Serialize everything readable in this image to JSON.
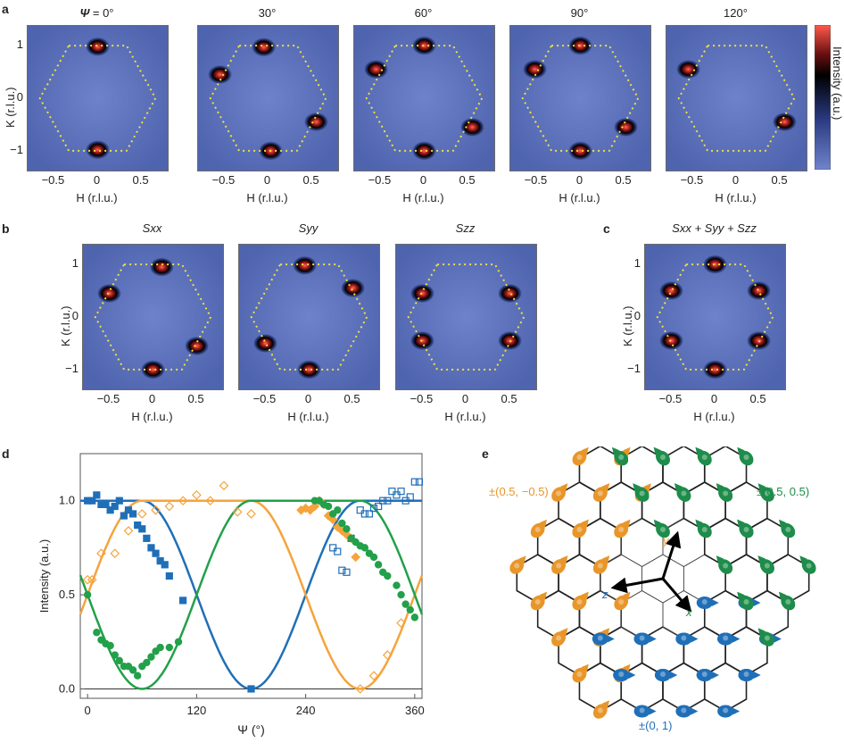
{
  "panels": {
    "a": "a",
    "b": "b",
    "c": "c",
    "d": "d",
    "e": "e"
  },
  "row_a": {
    "titles": [
      "Ψ = 0°",
      "30°",
      "60°",
      "90°",
      "120°"
    ],
    "psi_symbol": "Ψ",
    "psi_suffix": " = 0°"
  },
  "row_b": {
    "titles": [
      "Sxx",
      "Syy",
      "Szz"
    ],
    "title_c": "Sxx + Syy + Szz"
  },
  "axes": {
    "h_label": "H (r.l.u.)",
    "k_label": "K (r.l.u.)",
    "h_ticks": [
      "−0.5",
      "0",
      "0.5"
    ],
    "k_ticks": [
      "1",
      "0",
      "−1"
    ]
  },
  "colorbar": {
    "label": "Intensity (a.u.)",
    "colors": [
      "#ff5a4a",
      "#000000",
      "#4a5fb0",
      "#6f84cc"
    ]
  },
  "chart_data": {
    "type": "scatter",
    "xlabel": "Ψ (°)",
    "ylabel": "Intensity (a.u.)",
    "xlim": [
      -8,
      368
    ],
    "ylim": [
      -0.05,
      1.25
    ],
    "xticks": [
      0,
      120,
      240,
      360
    ],
    "yticks": [
      0.0,
      0.5,
      1.0
    ],
    "series": [
      {
        "color": "#1f6fb8",
        "filled_marker": "square",
        "filled": [
          [
            0,
            1.0
          ],
          [
            5,
            1.0
          ],
          [
            10,
            1.03
          ],
          [
            15,
            0.98
          ],
          [
            20,
            0.98
          ],
          [
            25,
            0.95
          ],
          [
            30,
            0.97
          ],
          [
            35,
            1.0
          ],
          [
            40,
            0.92
          ],
          [
            45,
            0.95
          ],
          [
            50,
            0.93
          ],
          [
            55,
            0.87
          ],
          [
            60,
            0.85
          ],
          [
            65,
            0.8
          ],
          [
            70,
            0.75
          ],
          [
            75,
            0.72
          ],
          [
            80,
            0.68
          ],
          [
            85,
            0.66
          ],
          [
            90,
            0.6
          ],
          [
            105,
            0.47
          ],
          [
            180,
            0.0
          ]
        ],
        "open": [
          [
            300,
            0.95
          ],
          [
            305,
            0.93
          ],
          [
            310,
            0.93
          ],
          [
            315,
            0.96
          ],
          [
            320,
            0.97
          ],
          [
            325,
            1.0
          ],
          [
            330,
            1.0
          ],
          [
            335,
            1.05
          ],
          [
            340,
            1.03
          ],
          [
            345,
            1.05
          ],
          [
            350,
            1.0
          ],
          [
            355,
            1.02
          ],
          [
            360,
            1.1
          ],
          [
            365,
            1.1
          ],
          [
            270,
            0.75
          ],
          [
            275,
            0.73
          ],
          [
            280,
            0.63
          ],
          [
            285,
            0.62
          ],
          [
            290,
            0.8
          ]
        ]
      },
      {
        "color": "#f5a43c",
        "filled_marker": "diamond",
        "filled": [
          [
            235,
            0.95
          ],
          [
            240,
            0.96
          ],
          [
            245,
            0.95
          ],
          [
            250,
            0.97
          ],
          [
            255,
            1.0
          ],
          [
            260,
            0.98
          ],
          [
            265,
            0.92
          ],
          [
            270,
            0.9
          ],
          [
            275,
            0.86
          ],
          [
            280,
            0.84
          ],
          [
            285,
            0.82
          ],
          [
            290,
            0.8
          ],
          [
            295,
            0.7
          ]
        ],
        "open": [
          [
            0,
            0.58
          ],
          [
            5,
            0.58
          ],
          [
            15,
            0.72
          ],
          [
            30,
            0.72
          ],
          [
            45,
            0.84
          ],
          [
            60,
            0.93
          ],
          [
            75,
            0.95
          ],
          [
            90,
            0.97
          ],
          [
            105,
            1.0
          ],
          [
            120,
            1.03
          ],
          [
            135,
            1.0
          ],
          [
            150,
            1.08
          ],
          [
            165,
            0.94
          ],
          [
            180,
            0.93
          ],
          [
            300,
            0.0
          ],
          [
            315,
            0.07
          ],
          [
            330,
            0.18
          ],
          [
            345,
            0.35
          ]
        ]
      },
      {
        "color": "#22a04a",
        "filled_marker": "circle",
        "filled": [
          [
            0,
            0.5
          ],
          [
            10,
            0.3
          ],
          [
            15,
            0.26
          ],
          [
            20,
            0.24
          ],
          [
            25,
            0.23
          ],
          [
            30,
            0.18
          ],
          [
            35,
            0.15
          ],
          [
            40,
            0.12
          ],
          [
            45,
            0.12
          ],
          [
            50,
            0.1
          ],
          [
            55,
            0.07
          ],
          [
            60,
            0.12
          ],
          [
            65,
            0.14
          ],
          [
            70,
            0.17
          ],
          [
            75,
            0.2
          ],
          [
            80,
            0.22
          ],
          [
            90,
            0.22
          ],
          [
            100,
            0.25
          ],
          [
            250,
            1.0
          ],
          [
            255,
            1.0
          ],
          [
            260,
            0.98
          ],
          [
            265,
            0.97
          ],
          [
            270,
            0.93
          ],
          [
            275,
            0.95
          ],
          [
            280,
            0.88
          ],
          [
            285,
            0.85
          ],
          [
            290,
            0.8
          ],
          [
            295,
            0.78
          ],
          [
            300,
            0.76
          ],
          [
            305,
            0.75
          ],
          [
            310,
            0.72
          ],
          [
            315,
            0.7
          ],
          [
            320,
            0.66
          ],
          [
            325,
            0.62
          ],
          [
            330,
            0.6
          ],
          [
            340,
            0.55
          ],
          [
            345,
            0.5
          ],
          [
            350,
            0.45
          ],
          [
            355,
            0.42
          ],
          [
            360,
            0.38
          ]
        ],
        "open": []
      }
    ]
  },
  "lattice": {
    "label_orange": "±(0.5, −0.5)",
    "label_green": "±(0.5, 0.5)",
    "label_blue": "±(0, 1)",
    "axis_x": "x",
    "axis_y": "y",
    "axis_z": "z",
    "color_orange": "#e8962a",
    "color_green": "#1e8c4a",
    "color_blue": "#1f6fb8"
  }
}
